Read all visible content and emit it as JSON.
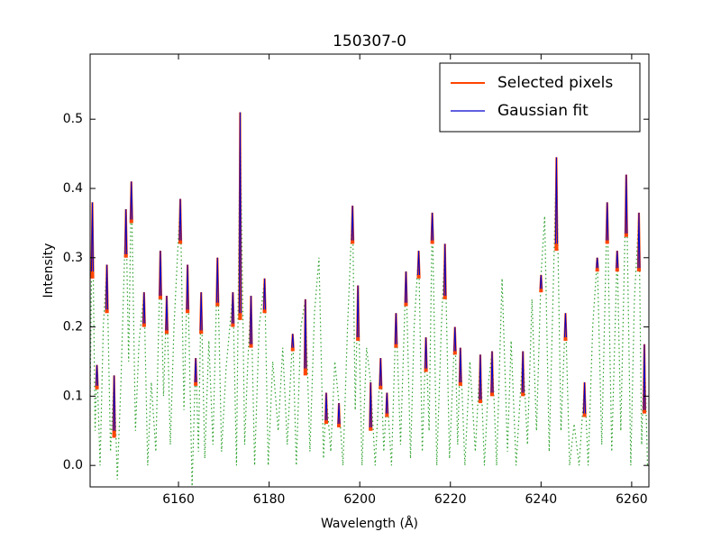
{
  "chart_data": {
    "type": "line",
    "title": "150307-0",
    "x_label": "Wavelength (Å)",
    "y_label": "Intensity",
    "xlim": [
      6140.5,
      6263.8
    ],
    "ylim": [
      -0.031,
      0.594
    ],
    "xticks": [
      6160,
      6180,
      6200,
      6220,
      6240,
      6260
    ],
    "yticks": [
      {
        "value": 0,
        "label": "0.0"
      },
      0.1,
      0.2,
      0.3,
      0.4,
      0.5
    ],
    "legend": "upper right",
    "series": [
      {
        "color": "#2ca02c",
        "style": "dotted",
        "x": [
          6140.5,
          6141,
          6141.6,
          6142,
          6142.7,
          6143.4,
          6144.2,
          6145,
          6145.8,
          6146.5,
          6147.3,
          6148.4,
          6149,
          6149.6,
          6150.5,
          6151.3,
          6152.4,
          6153.2,
          6154,
          6155,
          6156,
          6156.7,
          6157.4,
          6158.2,
          6159,
          6160.4,
          6161.2,
          6162,
          6163,
          6163.8,
          6164.4,
          6165,
          6165.8,
          6166.7,
          6167.6,
          6168.6,
          6169.5,
          6170.5,
          6172,
          6172.8,
          6173.6,
          6174.6,
          6175.3,
          6176,
          6176.8,
          6177.8,
          6179,
          6179.8,
          6180.8,
          6182,
          6183,
          6184,
          6185.2,
          6186,
          6187,
          6188,
          6189,
          6190,
          6191,
          6192,
          6192.6,
          6193.6,
          6194.5,
          6195.4,
          6196.3,
          6197.3,
          6198.4,
          6199,
          6199.6,
          6200.5,
          6201.5,
          6202.4,
          6203.4,
          6204.6,
          6205.3,
          6206,
          6207,
          6208,
          6209,
          6210.2,
          6211.2,
          6212,
          6213,
          6213.8,
          6214.6,
          6215.3,
          6216,
          6217,
          6218,
          6218.8,
          6219.8,
          6221,
          6221.6,
          6222.2,
          6223.2,
          6224.3,
          6225.5,
          6226.6,
          6227.5,
          6228.4,
          6229.2,
          6230.2,
          6231.4,
          6232.6,
          6233.4,
          6234.5,
          6236,
          6237,
          6238,
          6239,
          6240,
          6240.8,
          6241.8,
          6243.4,
          6244.4,
          6245.4,
          6246.3,
          6247.3,
          6248.4,
          6249.6,
          6250.4,
          6251.4,
          6252.4,
          6253.4,
          6254.6,
          6255.6,
          6256.8,
          6257.6,
          6258.8,
          6259.8,
          6260.6,
          6261.6,
          6262.2,
          6262.8,
          6263.5
        ],
        "values": [
          0.1,
          0.38,
          0.05,
          0.145,
          0.0,
          0.2,
          0.29,
          0.02,
          0.13,
          -0.02,
          0.12,
          0.37,
          0.15,
          0.41,
          0.05,
          0.18,
          0.25,
          0.0,
          0.12,
          0.02,
          0.31,
          0.1,
          0.245,
          0.03,
          0.2,
          0.385,
          0.08,
          0.29,
          -0.03,
          0.155,
          0.02,
          0.25,
          0.01,
          0.18,
          0.03,
          0.3,
          0.02,
          0.14,
          0.25,
          0.0,
          0.51,
          0.03,
          0.15,
          0.245,
          0.0,
          0.2,
          0.27,
          0.0,
          0.15,
          0.05,
          0.17,
          0.03,
          0.19,
          0.0,
          0.2,
          0.24,
          0.02,
          0.22,
          0.3,
          0.01,
          0.105,
          0.02,
          0.15,
          0.09,
          0.0,
          0.2,
          0.375,
          0.08,
          0.26,
          0.0,
          0.17,
          0.12,
          0.0,
          0.155,
          0.02,
          0.105,
          0.0,
          0.22,
          0.03,
          0.28,
          0.01,
          0.2,
          0.31,
          0.02,
          0.185,
          0.05,
          0.365,
          0.0,
          0.2,
          0.32,
          0.01,
          0.2,
          0.03,
          0.17,
          0.0,
          0.15,
          0.02,
          0.16,
          0.0,
          0.12,
          0.165,
          0.0,
          0.27,
          0.02,
          0.18,
          0.0,
          0.165,
          0.03,
          0.24,
          0.05,
          0.275,
          0.36,
          0.02,
          0.445,
          0.05,
          0.22,
          0.0,
          0.06,
          0.0,
          0.12,
          0.0,
          0.2,
          0.3,
          0.03,
          0.38,
          0.02,
          0.31,
          0.05,
          0.42,
          0.0,
          0.24,
          0.365,
          0.03,
          0.175,
          0.0
        ]
      },
      {
        "name": "Selected pixels",
        "color": "#ff4500",
        "style": "solid",
        "x": [
          6140.8,
          6141,
          6141.2,
          null,
          6141.8,
          6142,
          6142.2,
          null,
          6144,
          6144.2,
          6144.4,
          null,
          6145.6,
          6145.8,
          6146,
          null,
          6148.2,
          6148.4,
          6148.6,
          null,
          6149.4,
          6149.6,
          6149.8,
          null,
          6152.2,
          6152.4,
          6152.6,
          null,
          6155.8,
          6156,
          6156.2,
          null,
          6157.2,
          6157.4,
          6157.6,
          null,
          6160.2,
          6160.4,
          6160.6,
          null,
          6161.8,
          6162,
          6162.2,
          null,
          6163.6,
          6163.8,
          6164,
          null,
          6164.8,
          6165,
          6165.2,
          null,
          6168.4,
          6168.6,
          6168.8,
          null,
          6171.8,
          6172,
          6172.2,
          null,
          6173.4,
          6173.6,
          6173.8,
          null,
          6175.8,
          6176,
          6176.2,
          null,
          6178.8,
          6179,
          6179.2,
          null,
          6185,
          6185.2,
          6185.4,
          null,
          6187.8,
          6188,
          6188.2,
          null,
          6192.4,
          6192.6,
          6192.8,
          null,
          6195.2,
          6195.4,
          6195.6,
          null,
          6198.2,
          6198.4,
          6198.6,
          null,
          6199.4,
          6199.6,
          6199.8,
          null,
          6202.2,
          6202.4,
          6202.6,
          null,
          6204.4,
          6204.6,
          6204.8,
          null,
          6205.8,
          6206,
          6206.2,
          null,
          6207.8,
          6208,
          6208.2,
          null,
          6210,
          6210.2,
          6210.4,
          null,
          6212.8,
          6213,
          6213.2,
          null,
          6214.4,
          6214.6,
          6214.8,
          null,
          6215.8,
          6216,
          6216.2,
          null,
          6218.6,
          6218.8,
          6219,
          null,
          6220.8,
          6221,
          6221.2,
          null,
          6222,
          6222.2,
          6222.4,
          null,
          6226.4,
          6226.6,
          6226.8,
          null,
          6229,
          6229.2,
          6229.4,
          null,
          6235.8,
          6236,
          6236.2,
          null,
          6239.8,
          6240,
          6240.2,
          null,
          6243.2,
          6243.4,
          6243.6,
          null,
          6245.2,
          6245.4,
          6245.6,
          null,
          6249.4,
          6249.6,
          6249.8,
          null,
          6252.2,
          6252.4,
          6252.6,
          null,
          6254.4,
          6254.6,
          6254.8,
          null,
          6256.6,
          6256.8,
          6257,
          null,
          6258.6,
          6258.8,
          6259,
          null,
          6261.4,
          6261.6,
          6261.8,
          null,
          6262.6,
          6262.8,
          6263
        ],
        "values": [
          0.27,
          0.38,
          0.27,
          null,
          0.11,
          0.145,
          0.11,
          null,
          0.22,
          0.29,
          0.22,
          null,
          0.04,
          0.13,
          0.04,
          null,
          0.3,
          0.37,
          0.3,
          null,
          0.35,
          0.41,
          0.35,
          null,
          0.2,
          0.25,
          0.2,
          null,
          0.24,
          0.31,
          0.24,
          null,
          0.19,
          0.245,
          0.19,
          null,
          0.32,
          0.385,
          0.32,
          null,
          0.22,
          0.29,
          0.22,
          null,
          0.115,
          0.155,
          0.115,
          null,
          0.19,
          0.25,
          0.19,
          null,
          0.23,
          0.3,
          0.23,
          null,
          0.2,
          0.25,
          0.2,
          null,
          0.21,
          0.51,
          0.21,
          null,
          0.17,
          0.245,
          0.17,
          null,
          0.22,
          0.27,
          0.22,
          null,
          0.165,
          0.19,
          0.165,
          null,
          0.13,
          0.24,
          0.13,
          null,
          0.06,
          0.105,
          0.06,
          null,
          0.055,
          0.09,
          0.055,
          null,
          0.32,
          0.375,
          0.32,
          null,
          0.18,
          0.26,
          0.18,
          null,
          0.05,
          0.12,
          0.05,
          null,
          0.11,
          0.155,
          0.11,
          null,
          0.07,
          0.105,
          0.07,
          null,
          0.17,
          0.22,
          0.17,
          null,
          0.23,
          0.28,
          0.23,
          null,
          0.27,
          0.31,
          0.27,
          null,
          0.135,
          0.185,
          0.135,
          null,
          0.32,
          0.365,
          0.32,
          null,
          0.24,
          0.32,
          0.24,
          null,
          0.16,
          0.2,
          0.16,
          null,
          0.115,
          0.17,
          0.115,
          null,
          0.09,
          0.16,
          0.09,
          null,
          0.1,
          0.165,
          0.1,
          null,
          0.1,
          0.165,
          0.1,
          null,
          0.25,
          0.275,
          0.25,
          null,
          0.31,
          0.445,
          0.31,
          null,
          0.18,
          0.22,
          0.18,
          null,
          0.07,
          0.12,
          0.07,
          null,
          0.28,
          0.3,
          0.28,
          null,
          0.32,
          0.38,
          0.32,
          null,
          0.28,
          0.31,
          0.28,
          null,
          0.33,
          0.42,
          0.33,
          null,
          0.28,
          0.365,
          0.28,
          null,
          0.075,
          0.175,
          0.075
        ]
      },
      {
        "name": "Gaussian fit",
        "color": "#0000cd",
        "style": "solid",
        "x": [
          6140.8,
          6141,
          6141.2,
          null,
          6141.8,
          6142,
          6142.2,
          null,
          6144,
          6144.2,
          6144.4,
          null,
          6145.6,
          6145.8,
          6146,
          null,
          6148.2,
          6148.4,
          6148.6,
          null,
          6149.4,
          6149.6,
          6149.8,
          null,
          6152.2,
          6152.4,
          6152.6,
          null,
          6155.8,
          6156,
          6156.2,
          null,
          6157.2,
          6157.4,
          6157.6,
          null,
          6160.2,
          6160.4,
          6160.6,
          null,
          6161.8,
          6162,
          6162.2,
          null,
          6163.6,
          6163.8,
          6164,
          null,
          6164.8,
          6165,
          6165.2,
          null,
          6168.4,
          6168.6,
          6168.8,
          null,
          6171.8,
          6172,
          6172.2,
          null,
          6173.4,
          6173.6,
          6173.8,
          null,
          6175.8,
          6176,
          6176.2,
          null,
          6178.8,
          6179,
          6179.2,
          null,
          6185,
          6185.2,
          6185.4,
          null,
          6187.8,
          6188,
          6188.2,
          null,
          6192.4,
          6192.6,
          6192.8,
          null,
          6195.2,
          6195.4,
          6195.6,
          null,
          6198.2,
          6198.4,
          6198.6,
          null,
          6199.4,
          6199.6,
          6199.8,
          null,
          6202.2,
          6202.4,
          6202.6,
          null,
          6204.4,
          6204.6,
          6204.8,
          null,
          6205.8,
          6206,
          6206.2,
          null,
          6207.8,
          6208,
          6208.2,
          null,
          6210,
          6210.2,
          6210.4,
          null,
          6212.8,
          6213,
          6213.2,
          null,
          6214.4,
          6214.6,
          6214.8,
          null,
          6215.8,
          6216,
          6216.2,
          null,
          6218.6,
          6218.8,
          6219,
          null,
          6220.8,
          6221,
          6221.2,
          null,
          6222,
          6222.2,
          6222.4,
          null,
          6226.4,
          6226.6,
          6226.8,
          null,
          6229,
          6229.2,
          6229.4,
          null,
          6235.8,
          6236,
          6236.2,
          null,
          6239.8,
          6240,
          6240.2,
          null,
          6243.2,
          6243.4,
          6243.6,
          null,
          6245.2,
          6245.4,
          6245.6,
          null,
          6249.4,
          6249.6,
          6249.8,
          null,
          6252.2,
          6252.4,
          6252.6,
          null,
          6254.4,
          6254.6,
          6254.8,
          null,
          6256.6,
          6256.8,
          6257,
          null,
          6258.6,
          6258.8,
          6259,
          null,
          6261.4,
          6261.6,
          6261.8,
          null,
          6262.6,
          6262.8,
          6263
        ],
        "values": [
          0.28,
          0.38,
          0.28,
          null,
          0.115,
          0.145,
          0.115,
          null,
          0.225,
          0.29,
          0.225,
          null,
          0.05,
          0.13,
          0.05,
          null,
          0.305,
          0.37,
          0.305,
          null,
          0.355,
          0.41,
          0.355,
          null,
          0.205,
          0.25,
          0.205,
          null,
          0.245,
          0.31,
          0.245,
          null,
          0.195,
          0.245,
          0.195,
          null,
          0.325,
          0.385,
          0.325,
          null,
          0.225,
          0.29,
          0.225,
          null,
          0.12,
          0.155,
          0.12,
          null,
          0.195,
          0.25,
          0.195,
          null,
          0.235,
          0.3,
          0.235,
          null,
          0.205,
          0.25,
          0.205,
          null,
          0.22,
          0.51,
          0.22,
          null,
          0.175,
          0.245,
          0.175,
          null,
          0.225,
          0.27,
          0.225,
          null,
          0.17,
          0.19,
          0.17,
          null,
          0.14,
          0.24,
          0.14,
          null,
          0.065,
          0.105,
          0.065,
          null,
          0.06,
          0.09,
          0.06,
          null,
          0.325,
          0.375,
          0.325,
          null,
          0.185,
          0.26,
          0.185,
          null,
          0.055,
          0.12,
          0.055,
          null,
          0.115,
          0.155,
          0.115,
          null,
          0.075,
          0.105,
          0.075,
          null,
          0.175,
          0.22,
          0.175,
          null,
          0.235,
          0.28,
          0.235,
          null,
          0.275,
          0.31,
          0.275,
          null,
          0.14,
          0.185,
          0.14,
          null,
          0.325,
          0.365,
          0.325,
          null,
          0.245,
          0.32,
          0.245,
          null,
          0.165,
          0.2,
          0.165,
          null,
          0.12,
          0.17,
          0.12,
          null,
          0.095,
          0.16,
          0.095,
          null,
          0.105,
          0.165,
          0.105,
          null,
          0.105,
          0.165,
          0.105,
          null,
          0.255,
          0.275,
          0.255,
          null,
          0.32,
          0.445,
          0.32,
          null,
          0.185,
          0.22,
          0.185,
          null,
          0.075,
          0.12,
          0.075,
          null,
          0.285,
          0.3,
          0.285,
          null,
          0.325,
          0.38,
          0.325,
          null,
          0.285,
          0.31,
          0.285,
          null,
          0.335,
          0.42,
          0.335,
          null,
          0.285,
          0.365,
          0.285,
          null,
          0.08,
          0.175,
          0.08
        ]
      }
    ]
  }
}
